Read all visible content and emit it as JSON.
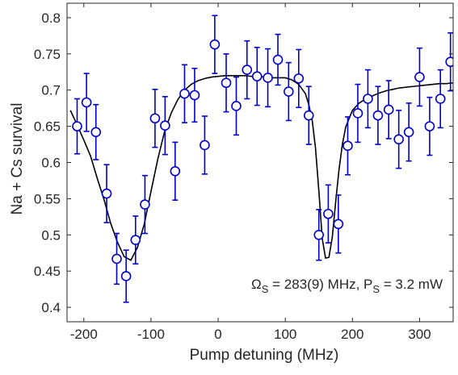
{
  "chart_data": {
    "type": "scatter",
    "title": "",
    "xlabel": "Pump detuning (MHz)",
    "ylabel": "Na + Cs survival",
    "xlim": [
      -225,
      350
    ],
    "ylim": [
      0.38,
      0.82
    ],
    "xticks": [
      -200,
      -100,
      0,
      100,
      200,
      300
    ],
    "xtick_labels": [
      "-200",
      "-100",
      "0",
      "100",
      "200",
      "300"
    ],
    "yticks": [
      0.4,
      0.45,
      0.5,
      0.55,
      0.6,
      0.65,
      0.7,
      0.75,
      0.8
    ],
    "ytick_labels": [
      "0.4",
      "0.45",
      "0.5",
      "0.55",
      "0.6",
      "0.65",
      "0.7",
      "0.75",
      "0.8"
    ],
    "grid": false,
    "annotation": {
      "omega_symbol": "Ω",
      "omega_sub": "S",
      "mid_text": " = 283(9) MHz, P",
      "p_sub": "S",
      "end_text": " = 3.2 mW"
    },
    "colors": {
      "data": "#0000cc",
      "fit": "#000000",
      "axes": "#262626"
    },
    "series": [
      {
        "kind": "errorbar",
        "x": [
          -210,
          -196,
          -182,
          -166,
          -151,
          -137,
          -123,
          -109,
          -94,
          -79,
          -64,
          -50,
          -35,
          -20,
          -5,
          12,
          27,
          43,
          58,
          74,
          89,
          105,
          120,
          135,
          150,
          164,
          179,
          193,
          208,
          223,
          238,
          254,
          269,
          284,
          300,
          315,
          331,
          346
        ],
        "y": [
          0.65,
          0.683,
          0.642,
          0.557,
          0.467,
          0.443,
          0.493,
          0.542,
          0.661,
          0.651,
          0.588,
          0.695,
          0.693,
          0.624,
          0.763,
          0.71,
          0.678,
          0.728,
          0.719,
          0.717,
          0.742,
          0.698,
          0.716,
          0.665,
          0.5,
          0.529,
          0.515,
          0.623,
          0.668,
          0.688,
          0.665,
          0.673,
          0.632,
          0.642,
          0.718,
          0.65,
          0.688,
          0.739
        ],
        "err": [
          0.038,
          0.04,
          0.038,
          0.04,
          0.035,
          0.036,
          0.033,
          0.04,
          0.04,
          0.04,
          0.04,
          0.04,
          0.037,
          0.04,
          0.04,
          0.04,
          0.04,
          0.04,
          0.04,
          0.04,
          0.035,
          0.04,
          0.04,
          0.04,
          0.035,
          0.04,
          0.04,
          0.04,
          0.04,
          0.04,
          0.04,
          0.04,
          0.04,
          0.04,
          0.04,
          0.04,
          0.04,
          0.04
        ]
      },
      {
        "kind": "fit",
        "x": [
          -220,
          -210,
          -200,
          -190,
          -180,
          -170,
          -160,
          -150,
          -140,
          -130,
          -120,
          -110,
          -100,
          -90,
          -80,
          -70,
          -60,
          -50,
          -40,
          -30,
          -20,
          -10,
          0,
          10,
          20,
          30,
          40,
          50,
          60,
          70,
          80,
          90,
          100,
          110,
          120,
          130,
          135,
          140,
          145,
          150,
          155,
          160,
          165,
          170,
          175,
          180,
          185,
          190,
          200,
          210,
          220,
          230,
          240,
          250,
          260,
          270,
          280,
          290,
          300,
          310,
          320,
          330,
          340,
          350
        ],
        "y": [
          0.672,
          0.652,
          0.631,
          0.609,
          0.578,
          0.549,
          0.516,
          0.49,
          0.47,
          0.465,
          0.483,
          0.515,
          0.56,
          0.604,
          0.642,
          0.668,
          0.687,
          0.7,
          0.708,
          0.713,
          0.716,
          0.718,
          0.719,
          0.72,
          0.72,
          0.72,
          0.72,
          0.719,
          0.719,
          0.718,
          0.717,
          0.717,
          0.717,
          0.714,
          0.708,
          0.695,
          0.68,
          0.659,
          0.62,
          0.561,
          0.495,
          0.468,
          0.469,
          0.497,
          0.545,
          0.59,
          0.625,
          0.649,
          0.672,
          0.682,
          0.688,
          0.692,
          0.696,
          0.699,
          0.701,
          0.703,
          0.704,
          0.705,
          0.706,
          0.707,
          0.708,
          0.709,
          0.709,
          0.71
        ]
      }
    ]
  }
}
